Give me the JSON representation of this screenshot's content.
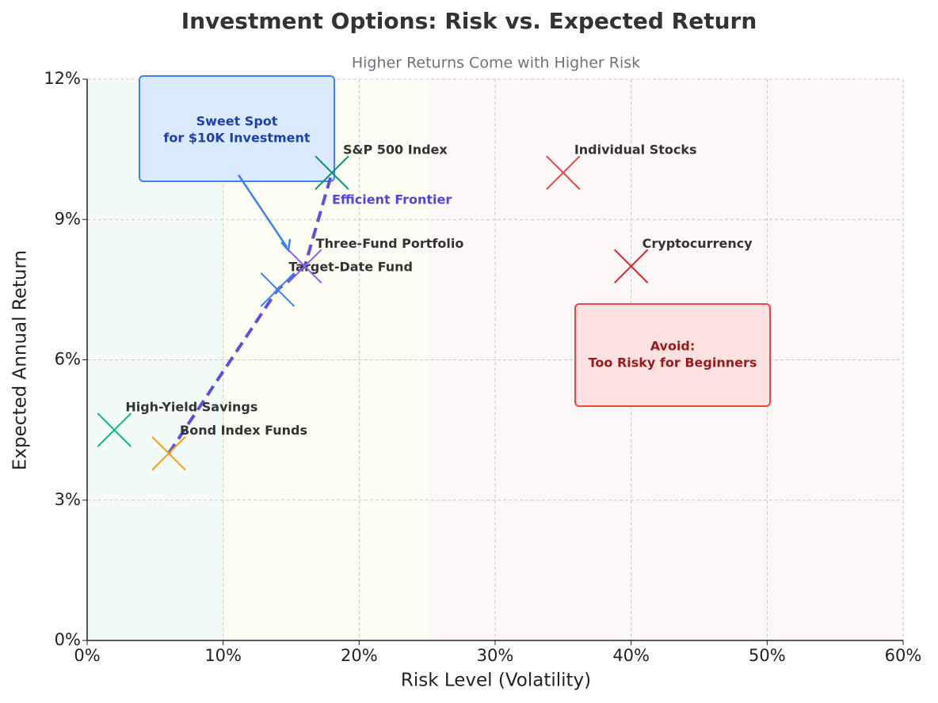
{
  "chart_data": {
    "type": "scatter",
    "title": "Investment Options: Risk vs. Expected Return",
    "subtitle": "Higher Returns Come with Higher Risk",
    "x_label": "Risk Level (Volatility)",
    "y_label": "Expected Annual Return",
    "xlim": [
      0,
      60
    ],
    "ylim": [
      0,
      12
    ],
    "xticks": [
      {
        "value": 0,
        "label": "0%"
      },
      {
        "value": 10,
        "label": "10%"
      },
      {
        "value": 20,
        "label": "20%"
      },
      {
        "value": 30,
        "label": "30%"
      },
      {
        "value": 40,
        "label": "40%"
      },
      {
        "value": 50,
        "label": "50%"
      },
      {
        "value": 60,
        "label": "60%"
      }
    ],
    "yticks": [
      {
        "value": 0,
        "label": "0%"
      },
      {
        "value": 3,
        "label": "3%"
      },
      {
        "value": 6,
        "label": "6%"
      },
      {
        "value": 9,
        "label": "9%"
      },
      {
        "value": 12,
        "label": "12%"
      }
    ],
    "grid": true,
    "points": [
      {
        "name": "High-Yield Savings",
        "x": 2,
        "y": 4.5,
        "color": "#10b981"
      },
      {
        "name": "Bond Index Funds",
        "x": 6,
        "y": 4,
        "color": "#f59e0b"
      },
      {
        "name": "Target-Date Fund",
        "x": 14,
        "y": 7.5,
        "color": "#3b82f6"
      },
      {
        "name": "Three-Fund Portfolio",
        "x": 16,
        "y": 8,
        "color": "#8b5cf6"
      },
      {
        "name": "S&P 500 Index",
        "x": 18,
        "y": 10,
        "color": "#059669"
      },
      {
        "name": "Individual Stocks",
        "x": 35,
        "y": 10,
        "color": "#ef4444"
      },
      {
        "name": "Cryptocurrency",
        "x": 40,
        "y": 8,
        "color": "#dc2626"
      }
    ],
    "frontier": {
      "name": "Efficient Frontier",
      "color": "#5b50e0",
      "x": [
        6,
        14,
        16,
        18
      ],
      "y": [
        4,
        7.5,
        8,
        10
      ]
    },
    "annotations": {
      "sweet_spot": "Sweet Spot\nfor $10K Investment",
      "avoid": "Avoid:\nToo Risky for Beginners"
    }
  }
}
